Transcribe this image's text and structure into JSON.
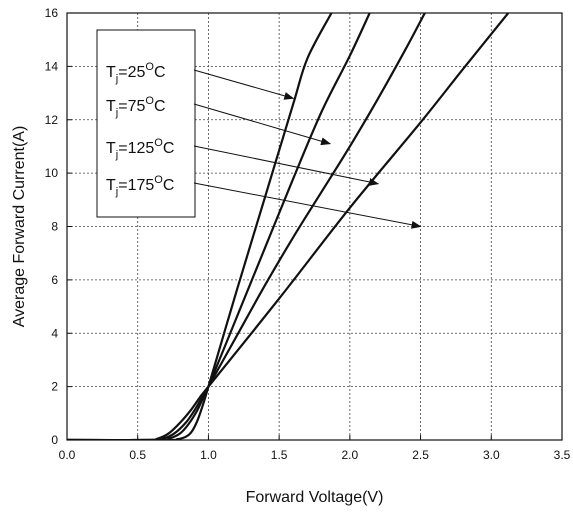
{
  "chart_data": {
    "type": "line",
    "xlabel": "Forward Voltage(V)",
    "ylabel": "Average Forward Current(A)",
    "xlim": [
      0.0,
      3.5
    ],
    "ylim": [
      0,
      16
    ],
    "xticks": [
      "0.0",
      "0.5",
      "1.0",
      "1.5",
      "2.0",
      "2.5",
      "3.0",
      "3.5"
    ],
    "yticks": [
      "0",
      "2",
      "4",
      "6",
      "8",
      "10",
      "12",
      "14",
      "16"
    ],
    "grid": true,
    "legend_position": "top-left",
    "series": [
      {
        "name": "Tj=25°C",
        "label_main": "T",
        "label_sub": "j",
        "label_eq": "=25",
        "label_sup": "O",
        "label_unit": "C",
        "x": [
          0.0,
          0.7,
          0.78,
          0.84,
          0.88,
          0.92,
          0.96,
          1.0,
          1.2,
          1.4,
          1.6,
          1.7,
          1.87
        ],
        "y": [
          0.0,
          0.0,
          0.03,
          0.12,
          0.3,
          0.7,
          1.3,
          2.0,
          5.6,
          9.1,
          12.6,
          14.3,
          16.0
        ]
      },
      {
        "name": "Tj=75°C",
        "label_main": "T",
        "label_sub": "j",
        "label_eq": "=75",
        "label_sup": "O",
        "label_unit": "C",
        "x": [
          0.0,
          0.65,
          0.72,
          0.8,
          0.86,
          0.92,
          0.96,
          1.0,
          1.2,
          1.4,
          1.6,
          1.8,
          2.0,
          2.14
        ],
        "y": [
          0.0,
          0.0,
          0.05,
          0.25,
          0.6,
          1.1,
          1.55,
          2.0,
          4.6,
          7.2,
          9.8,
          12.3,
          14.4,
          16.0
        ]
      },
      {
        "name": "Tj=125°C",
        "label_main": "T",
        "label_sub": "j",
        "label_eq": "=125",
        "label_sup": "O",
        "label_unit": "C",
        "x": [
          0.0,
          0.6,
          0.68,
          0.76,
          0.84,
          0.9,
          0.95,
          1.0,
          1.2,
          1.4,
          1.6,
          1.8,
          2.0,
          2.2,
          2.4,
          2.53
        ],
        "y": [
          0.0,
          0.0,
          0.05,
          0.25,
          0.65,
          1.1,
          1.55,
          2.0,
          3.9,
          5.8,
          7.6,
          9.3,
          11.0,
          12.8,
          14.7,
          16.0
        ]
      },
      {
        "name": "Tj=175°C",
        "label_main": "T",
        "label_sub": "j",
        "label_eq": "=175",
        "label_sup": "O",
        "label_unit": "C",
        "x": [
          0.0,
          0.55,
          0.64,
          0.72,
          0.8,
          0.88,
          0.94,
          1.0,
          1.5,
          2.0,
          2.5,
          2.8,
          3.12
        ],
        "y": [
          0.0,
          0.0,
          0.05,
          0.25,
          0.65,
          1.15,
          1.6,
          2.0,
          5.3,
          8.7,
          11.9,
          13.9,
          16.0
        ]
      }
    ],
    "annotations": [
      {
        "from_legend": 0,
        "to_x": 1.6,
        "to_y": 12.8
      },
      {
        "from_legend": 1,
        "to_x": 1.86,
        "to_y": 11.1
      },
      {
        "from_legend": 2,
        "to_x": 2.2,
        "to_y": 9.6
      },
      {
        "from_legend": 3,
        "to_x": 2.5,
        "to_y": 8.0
      }
    ]
  }
}
